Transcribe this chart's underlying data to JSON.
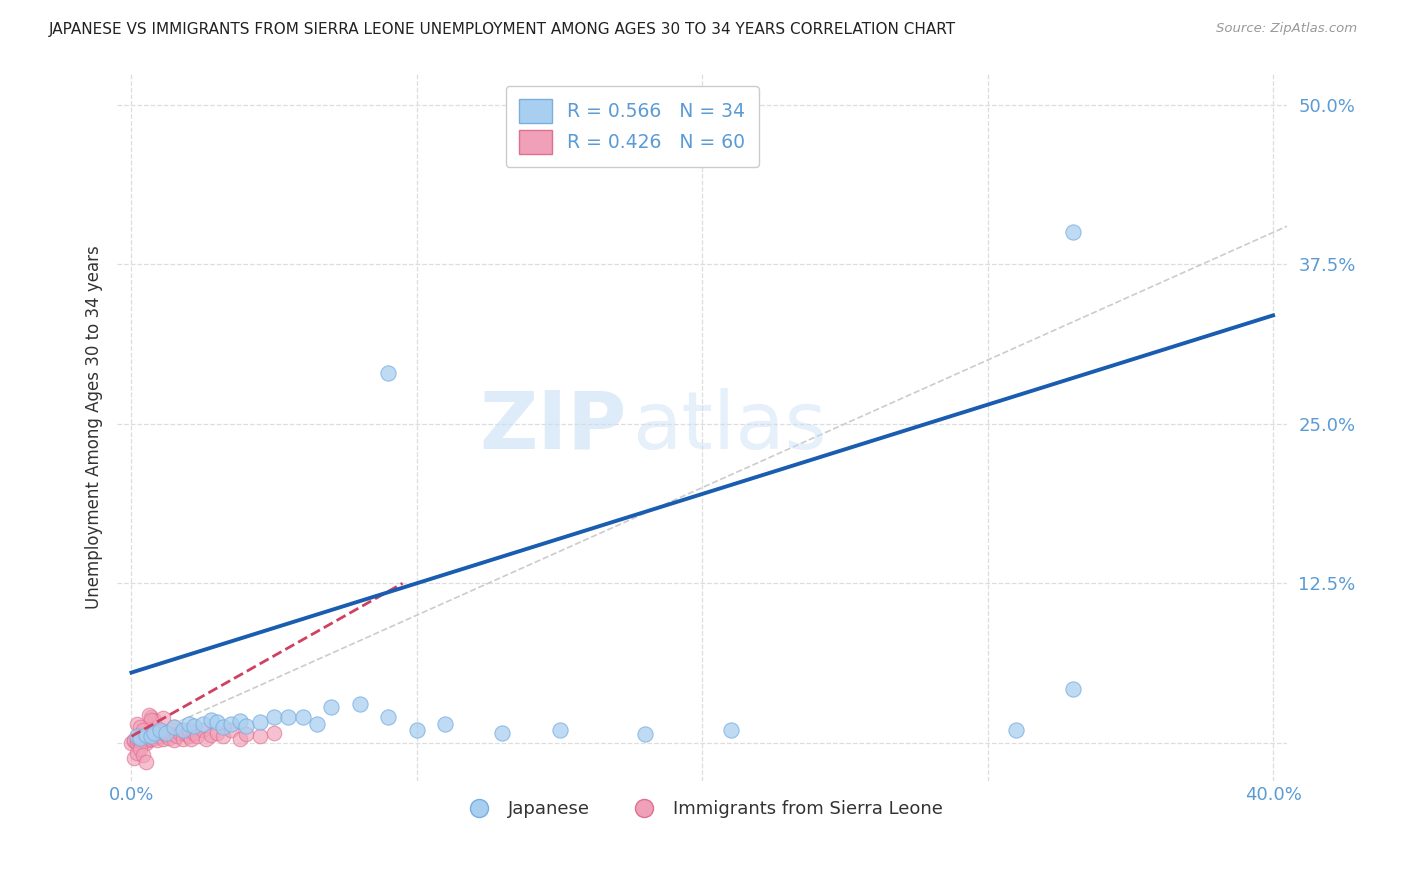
{
  "title": "JAPANESE VS IMMIGRANTS FROM SIERRA LEONE UNEMPLOYMENT AMONG AGES 30 TO 34 YEARS CORRELATION CHART",
  "source": "Source: ZipAtlas.com",
  "ylabel": "Unemployment Among Ages 30 to 34 years",
  "xlim": [
    -0.005,
    0.405
  ],
  "ylim": [
    -0.03,
    0.525
  ],
  "x_ticks": [
    0.0,
    0.1,
    0.2,
    0.3,
    0.4
  ],
  "y_ticks": [
    0.0,
    0.125,
    0.25,
    0.375,
    0.5
  ],
  "watermark_line1": "ZIP",
  "watermark_line2": "atlas",
  "japanese_color": "#a8cff0",
  "japanese_edge_color": "#7aaee0",
  "sierra_leone_color": "#f0a0b8",
  "sierra_leone_edge_color": "#e07090",
  "japanese_line_color": "#1a5cb0",
  "sierra_leone_line_color": "#d04060",
  "diagonal_color": "#cccccc",
  "background_color": "#ffffff",
  "grid_color": "#dddddd",
  "japanese_points": [
    [
      0.002,
      0.005
    ],
    [
      0.003,
      0.004
    ],
    [
      0.005,
      0.006
    ],
    [
      0.007,
      0.005
    ],
    [
      0.008,
      0.008
    ],
    [
      0.01,
      0.01
    ],
    [
      0.012,
      0.008
    ],
    [
      0.015,
      0.012
    ],
    [
      0.018,
      0.01
    ],
    [
      0.02,
      0.015
    ],
    [
      0.022,
      0.013
    ],
    [
      0.025,
      0.015
    ],
    [
      0.028,
      0.018
    ],
    [
      0.03,
      0.016
    ],
    [
      0.032,
      0.012
    ],
    [
      0.035,
      0.015
    ],
    [
      0.038,
      0.017
    ],
    [
      0.04,
      0.013
    ],
    [
      0.045,
      0.016
    ],
    [
      0.05,
      0.02
    ],
    [
      0.055,
      0.02
    ],
    [
      0.06,
      0.02
    ],
    [
      0.065,
      0.015
    ],
    [
      0.07,
      0.028
    ],
    [
      0.08,
      0.03
    ],
    [
      0.09,
      0.02
    ],
    [
      0.1,
      0.01
    ],
    [
      0.11,
      0.015
    ],
    [
      0.13,
      0.008
    ],
    [
      0.15,
      0.01
    ],
    [
      0.18,
      0.007
    ],
    [
      0.21,
      0.01
    ],
    [
      0.31,
      0.01
    ],
    [
      0.33,
      0.042
    ],
    [
      0.09,
      0.29
    ],
    [
      0.33,
      0.4
    ]
  ],
  "sierra_leone_points": [
    [
      0.0,
      0.0
    ],
    [
      0.001,
      0.001
    ],
    [
      0.001,
      0.002
    ],
    [
      0.002,
      0.0
    ],
    [
      0.002,
      0.003
    ],
    [
      0.003,
      0.001
    ],
    [
      0.003,
      0.004
    ],
    [
      0.004,
      0.002
    ],
    [
      0.004,
      0.005
    ],
    [
      0.005,
      0.0
    ],
    [
      0.005,
      0.003
    ],
    [
      0.005,
      0.006
    ],
    [
      0.006,
      0.002
    ],
    [
      0.006,
      0.005
    ],
    [
      0.006,
      0.008
    ],
    [
      0.007,
      0.003
    ],
    [
      0.007,
      0.006
    ],
    [
      0.007,
      0.02
    ],
    [
      0.008,
      0.004
    ],
    [
      0.008,
      0.018
    ],
    [
      0.009,
      0.002
    ],
    [
      0.009,
      0.008
    ],
    [
      0.01,
      0.005
    ],
    [
      0.01,
      0.01
    ],
    [
      0.011,
      0.003
    ],
    [
      0.011,
      0.019
    ],
    [
      0.012,
      0.006
    ],
    [
      0.013,
      0.004
    ],
    [
      0.014,
      0.007
    ],
    [
      0.015,
      0.002
    ],
    [
      0.015,
      0.012
    ],
    [
      0.016,
      0.005
    ],
    [
      0.017,
      0.008
    ],
    [
      0.018,
      0.003
    ],
    [
      0.019,
      0.007
    ],
    [
      0.02,
      0.005
    ],
    [
      0.02,
      0.01
    ],
    [
      0.021,
      0.003
    ],
    [
      0.022,
      0.008
    ],
    [
      0.023,
      0.005
    ],
    [
      0.025,
      0.01
    ],
    [
      0.026,
      0.003
    ],
    [
      0.028,
      0.006
    ],
    [
      0.03,
      0.008
    ],
    [
      0.032,
      0.005
    ],
    [
      0.035,
      0.01
    ],
    [
      0.038,
      0.003
    ],
    [
      0.04,
      0.007
    ],
    [
      0.045,
      0.005
    ],
    [
      0.05,
      0.008
    ],
    [
      0.001,
      -0.012
    ],
    [
      0.002,
      -0.008
    ],
    [
      0.003,
      -0.005
    ],
    [
      0.004,
      -0.01
    ],
    [
      0.005,
      -0.015
    ],
    [
      0.006,
      0.022
    ],
    [
      0.007,
      0.018
    ],
    [
      0.002,
      0.015
    ],
    [
      0.003,
      0.012
    ],
    [
      0.004,
      0.01
    ]
  ],
  "japanese_line_x": [
    0.0,
    0.4
  ],
  "japanese_line_y": [
    0.055,
    0.335
  ],
  "sierra_leone_line_x": [
    0.0,
    0.095
  ],
  "sierra_leone_line_y": [
    0.005,
    0.125
  ]
}
